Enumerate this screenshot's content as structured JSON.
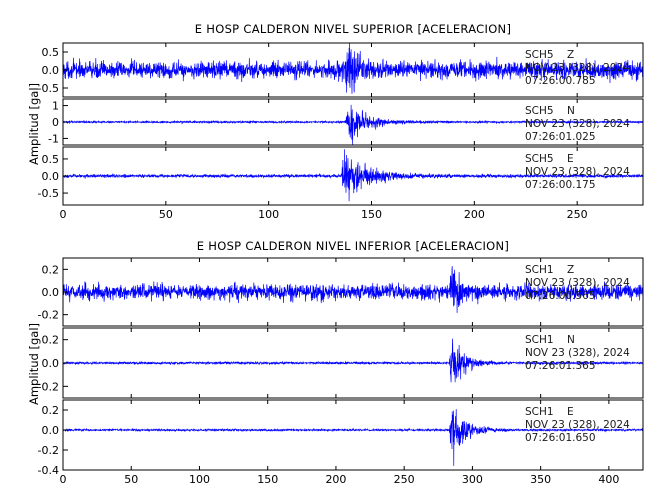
{
  "chart_data": [
    {
      "type": "line",
      "title": "E HOSP CALDERON NIVEL SUPERIOR [ACELERACION]",
      "ylabel": "Amplitud [gal]",
      "xlim": [
        0,
        282
      ],
      "xticks": [
        "0",
        "50",
        "100",
        "150",
        "200",
        "250"
      ],
      "series_color": "#0000ff",
      "panels": [
        {
          "name": "SCH5 Z",
          "station": "SCH5",
          "component": "Z",
          "date": "NOV 23 (328), 2024",
          "time": "07:26:00.785",
          "ylim": [
            -0.75,
            0.75
          ],
          "yticks": [
            "0.5",
            "0.0",
            "-0.5"
          ],
          "noise": 0.26,
          "event_time": 139,
          "event_peak": 0.68,
          "decay": 3.5
        },
        {
          "name": "SCH5 N",
          "station": "SCH5",
          "component": "N",
          "date": "NOV 23 (328), 2024",
          "time": "07:26:01.025",
          "ylim": [
            -1.4,
            1.4
          ],
          "yticks": [
            "1",
            "0",
            "-1"
          ],
          "noise": 0.06,
          "event_time": 139,
          "event_peak": 1.25,
          "decay": 9
        },
        {
          "name": "SCH5 E",
          "station": "SCH5",
          "component": "E",
          "date": "NOV 23 (328), 2024",
          "time": "07:26:00.175",
          "ylim": [
            -0.85,
            0.85
          ],
          "yticks": [
            "0.5",
            "0.0",
            "-0.5"
          ],
          "noise": 0.05,
          "event_time": 137,
          "event_peak": 0.78,
          "decay": 11
        }
      ]
    },
    {
      "type": "line",
      "title": "E HOSP CALDERON NIVEL INFERIOR [ACELERACION]",
      "ylabel": "Amplitud [gal]",
      "xlim": [
        0,
        425
      ],
      "xticks": [
        "0",
        "50",
        "100",
        "150",
        "200",
        "250",
        "300",
        "350",
        "400"
      ],
      "series_color": "#0000ff",
      "panels": [
        {
          "name": "SCH1 Z",
          "station": "SCH1",
          "component": "Z",
          "date": "NOV 23 (328), 2024",
          "time": "07:26:00.565",
          "ylim": [
            -0.3,
            0.3
          ],
          "yticks": [
            "0.2",
            "0.0",
            "-0.2"
          ],
          "noise": 0.075,
          "event_time": 285,
          "event_peak": 0.28,
          "decay": 5
        },
        {
          "name": "SCH1 N",
          "station": "SCH1",
          "component": "N",
          "date": "NOV 23 (328), 2024",
          "time": "07:26:01.365",
          "ylim": [
            -0.3,
            0.3
          ],
          "yticks": [
            "0.2",
            "0.0",
            "-0.2"
          ],
          "noise": 0.01,
          "event_time": 285,
          "event_peak": 0.27,
          "decay": 9
        },
        {
          "name": "SCH1 E",
          "station": "SCH1",
          "component": "E",
          "date": "NOV 23 (328), 2024",
          "time": "07:26:01.650",
          "ylim": [
            -0.4,
            0.3
          ],
          "yticks": [
            "0.2",
            "0.0",
            "-0.2",
            "-0.4"
          ],
          "noise": 0.01,
          "event_time": 285,
          "event_peak": 0.38,
          "decay": 9
        }
      ]
    }
  ]
}
